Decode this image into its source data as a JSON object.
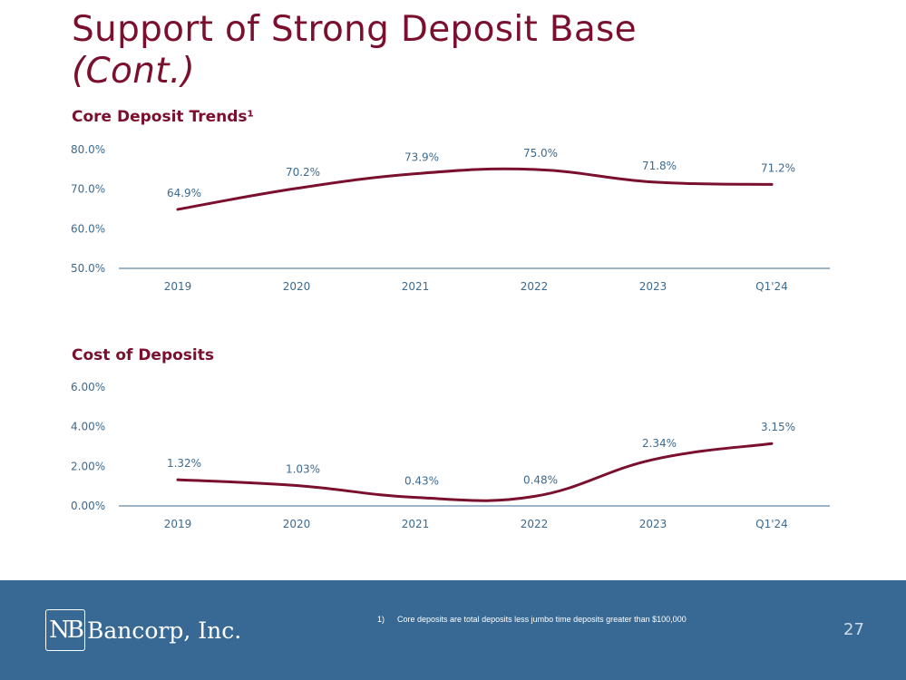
{
  "slide": {
    "title_line1": "Support of Strong Deposit Base",
    "title_line2": "(Cont.)",
    "page_number": "27"
  },
  "colors": {
    "brand": "#7a0f2e",
    "axis_text": "#3d6a8f",
    "footer_bg": "#386994"
  },
  "footer": {
    "logo_mark": "NB",
    "logo_text": "Bancorp, Inc.",
    "footnote_number": "1)",
    "footnote_text": "Core deposits are total deposits less jumbo time deposits greater than $100,000"
  },
  "chart_data": [
    {
      "type": "line",
      "title": "Core Deposit Trends¹",
      "categories": [
        "2019",
        "2020",
        "2021",
        "2022",
        "2023",
        "Q1'24"
      ],
      "values": [
        64.9,
        70.2,
        73.9,
        75.0,
        71.8,
        71.2
      ],
      "data_labels": [
        "64.9%",
        "70.2%",
        "73.9%",
        "75.0%",
        "71.8%",
        "71.2%"
      ],
      "yticks": [
        "50.0%",
        "60.0%",
        "70.0%",
        "80.0%"
      ],
      "ylim": [
        50,
        80
      ],
      "xlabel": "",
      "ylabel": "",
      "grid": false
    },
    {
      "type": "line",
      "title": "Cost of Deposits",
      "categories": [
        "2019",
        "2020",
        "2021",
        "2022",
        "2023",
        "Q1'24"
      ],
      "values": [
        1.32,
        1.03,
        0.43,
        0.48,
        2.34,
        3.15
      ],
      "data_labels": [
        "1.32%",
        "1.03%",
        "0.43%",
        "0.48%",
        "2.34%",
        "3.15%"
      ],
      "yticks": [
        "0.00%",
        "2.00%",
        "4.00%",
        "6.00%"
      ],
      "ylim": [
        0,
        6
      ],
      "xlabel": "",
      "ylabel": "",
      "grid": false
    }
  ]
}
